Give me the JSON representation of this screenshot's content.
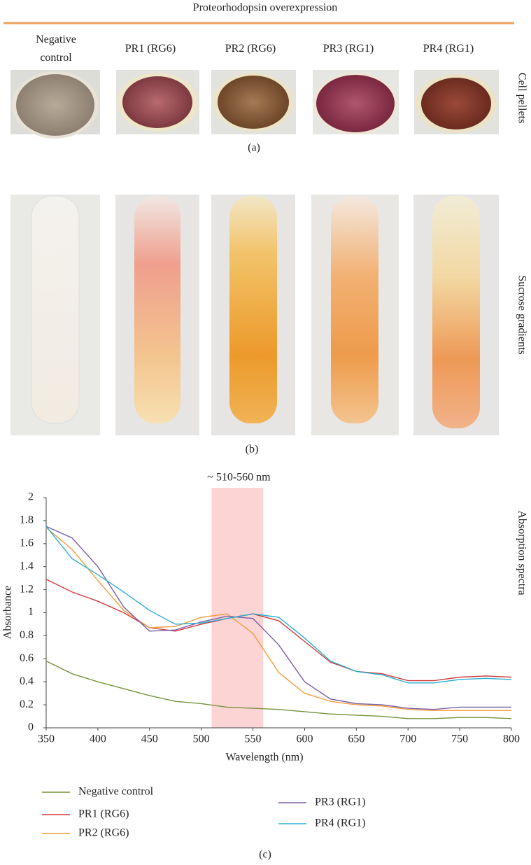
{
  "header": {
    "title": "Proteorhodopsin overexpression",
    "columns": [
      "Negative control",
      "PR1 (RG6)",
      "PR2 (RG6)",
      "PR3 (RG1)",
      "PR4 (RG1)"
    ]
  },
  "panels": {
    "a": {
      "label": "(a)",
      "side_label": "Cell pellets"
    },
    "b": {
      "label": "(b)",
      "side_label": "Sucrose gradients"
    },
    "c": {
      "label": "(c)",
      "side_label": "Absorption spectra"
    }
  },
  "chart_data": {
    "type": "line",
    "xlabel": "Wavelength (nm)",
    "ylabel": "Absorbance",
    "highlight": {
      "label": "~ 510-560 nm",
      "range": [
        510,
        560
      ],
      "color": "#fcd4d4"
    },
    "x": [
      350,
      375,
      400,
      425,
      450,
      475,
      500,
      525,
      550,
      575,
      600,
      625,
      650,
      675,
      700,
      725,
      750,
      775,
      800
    ],
    "series": [
      {
        "name": "Negative control",
        "color": "#77933c",
        "values": [
          0.58,
          0.47,
          0.4,
          0.34,
          0.28,
          0.23,
          0.21,
          0.18,
          0.17,
          0.16,
          0.14,
          0.12,
          0.11,
          0.1,
          0.08,
          0.08,
          0.09,
          0.09,
          0.08
        ]
      },
      {
        "name": "PR1 (RG6)",
        "color": "#d03a3a",
        "values": [
          1.29,
          1.18,
          1.1,
          1.0,
          0.87,
          0.84,
          0.9,
          0.95,
          0.99,
          0.93,
          0.75,
          0.57,
          0.49,
          0.47,
          0.41,
          0.41,
          0.44,
          0.45,
          0.44
        ]
      },
      {
        "name": "PR2 (RG6)",
        "color": "#f39c3c",
        "values": [
          1.74,
          1.55,
          1.28,
          1.02,
          0.87,
          0.88,
          0.96,
          0.99,
          0.82,
          0.48,
          0.3,
          0.23,
          0.2,
          0.19,
          0.16,
          0.15,
          0.15,
          0.15,
          0.15
        ]
      },
      {
        "name": "PR3 (RG1)",
        "color": "#7b5ea7",
        "values": [
          1.75,
          1.65,
          1.4,
          1.05,
          0.84,
          0.85,
          0.92,
          0.97,
          0.95,
          0.72,
          0.4,
          0.25,
          0.21,
          0.2,
          0.17,
          0.16,
          0.18,
          0.18,
          0.18
        ]
      },
      {
        "name": "PR4 (RG1)",
        "color": "#2ab0d0",
        "values": [
          1.75,
          1.47,
          1.33,
          1.18,
          1.02,
          0.9,
          0.91,
          0.95,
          0.99,
          0.96,
          0.78,
          0.58,
          0.49,
          0.46,
          0.39,
          0.39,
          0.42,
          0.43,
          0.42
        ]
      }
    ],
    "xlim": [
      350,
      800
    ],
    "xticks": [
      350,
      400,
      450,
      500,
      550,
      600,
      650,
      700,
      750,
      800
    ],
    "ylim": [
      0,
      2
    ],
    "yticks": [
      0,
      0.2,
      0.4,
      0.6,
      0.8,
      1,
      1.2,
      1.4,
      1.6,
      1.8,
      2
    ]
  }
}
